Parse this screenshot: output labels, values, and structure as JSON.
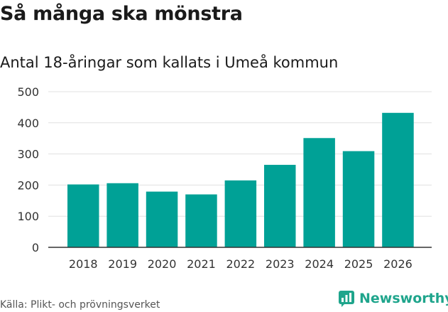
{
  "chart_data": {
    "type": "bar",
    "title": "Så många ska mönstra",
    "subtitle": "Antal 18-åringar som kallats i Umeå kommun",
    "categories": [
      "2018",
      "2019",
      "2020",
      "2021",
      "2022",
      "2023",
      "2024",
      "2025",
      "2026"
    ],
    "values": [
      202,
      206,
      179,
      170,
      215,
      265,
      351,
      309,
      432
    ],
    "yticks": [
      0,
      100,
      200,
      300,
      400,
      500
    ],
    "ylim": [
      0,
      500
    ],
    "xlabel": "",
    "ylabel": "",
    "grid": true,
    "bar_color": "#00a196",
    "grid_color": "#e0e0e0",
    "axis_color": "#333333"
  },
  "footer": {
    "source": "Källa: Plikt- och prövningsverket",
    "brand": "Newsworthy",
    "brand_color": "#1fa58c"
  }
}
